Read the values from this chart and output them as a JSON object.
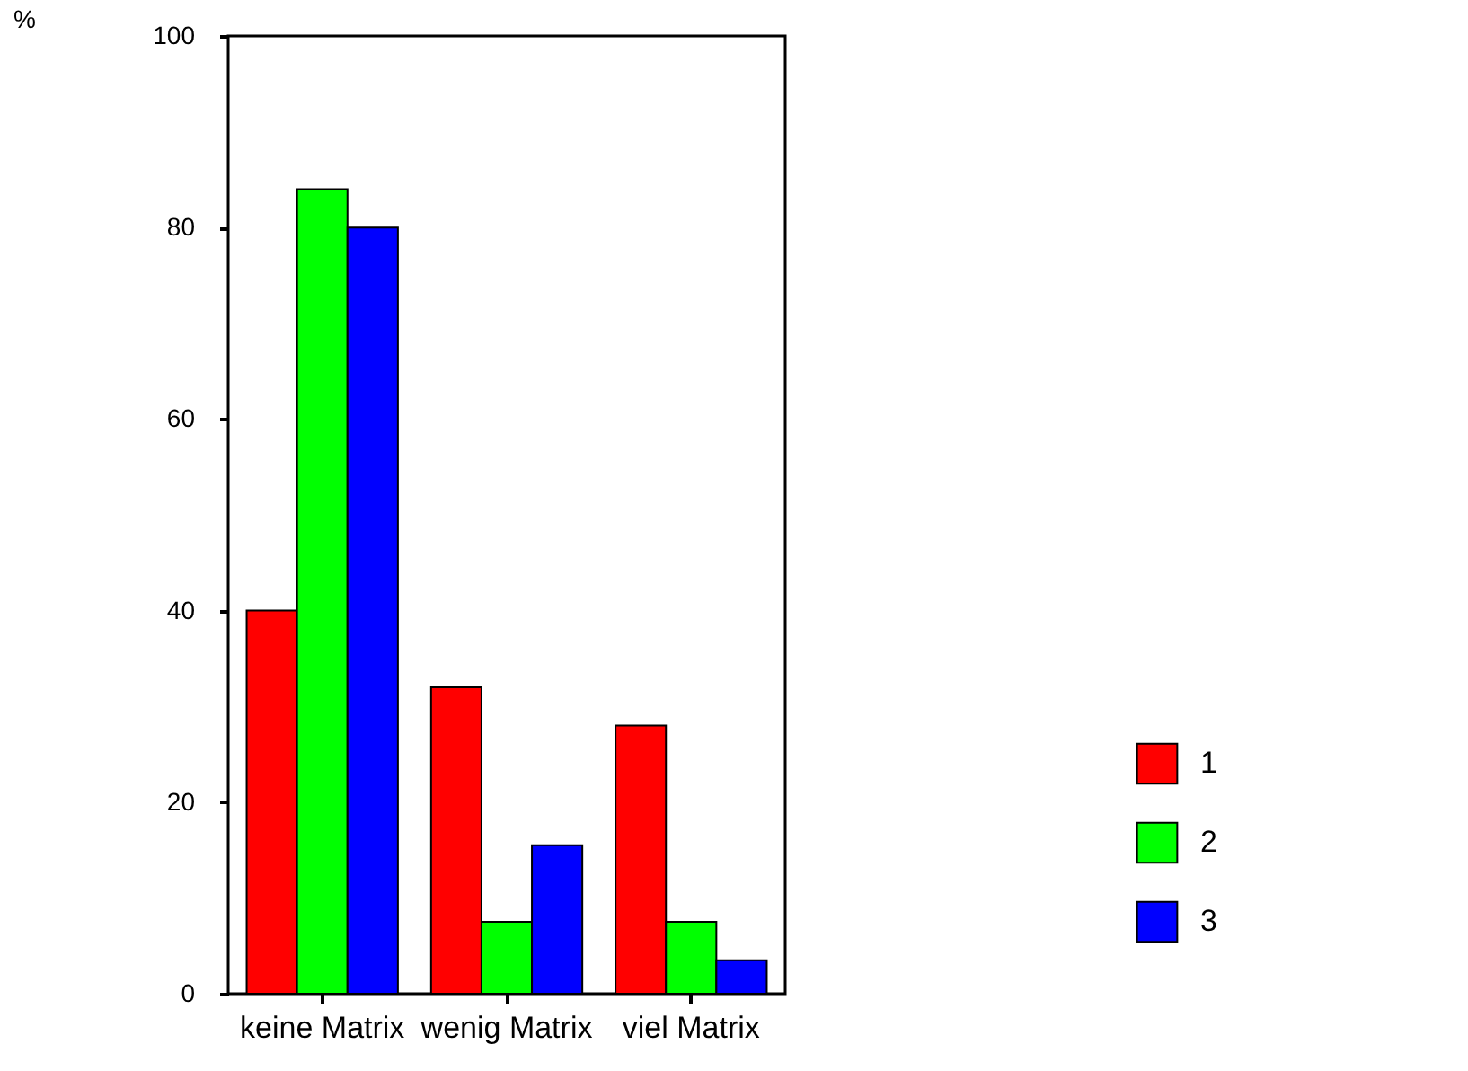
{
  "chart_data": {
    "type": "bar",
    "ylabel": "%",
    "categories": [
      "keine Matrix",
      "wenig Matrix",
      "viel Matrix"
    ],
    "series": [
      {
        "name": "1",
        "color": "#ff0000",
        "values": [
          40,
          32,
          28
        ]
      },
      {
        "name": "2",
        "color": "#00ff00",
        "values": [
          84,
          7.5,
          7.5
        ]
      },
      {
        "name": "3",
        "color": "#0000ff",
        "values": [
          80,
          15.5,
          3.5
        ]
      }
    ],
    "ylim": [
      0,
      100
    ],
    "yticks": [
      0,
      20,
      40,
      60,
      80,
      100
    ],
    "grid": false,
    "legend": "bottom right"
  }
}
